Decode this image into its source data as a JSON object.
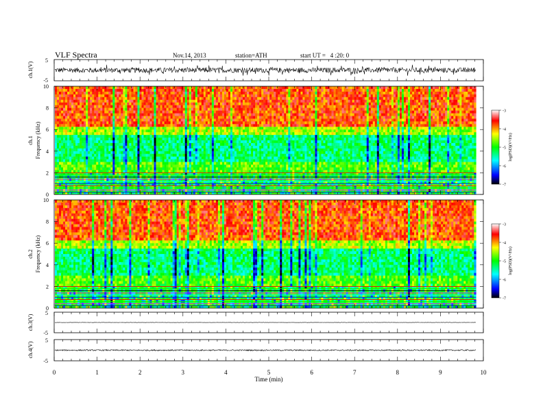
{
  "header": {
    "title": "VLF Spectra",
    "date": "Nov.14, 2013",
    "station": "station=ATH",
    "start": "start UT =   4 :20: 0"
  },
  "chart_data": [
    {
      "type": "line",
      "panel": "ch1-waveform",
      "ylabel": "ch.1(V)",
      "ylim": [
        -5,
        5
      ],
      "yticks": [
        "5",
        "-5"
      ],
      "xlim": [
        0,
        10
      ],
      "data_end": 9.83,
      "baseline": 0,
      "amplitude": 1.2
    },
    {
      "type": "heatmap",
      "panel": "ch1-spectrogram",
      "ylabel_channel": "ch.1",
      "ylabel": "Frequency (kHz)",
      "ylim": [
        0,
        10
      ],
      "yticks": [
        "0",
        "2",
        "4",
        "6",
        "8",
        "10"
      ],
      "xlim": [
        0,
        10
      ],
      "data_end": 9.83,
      "colorbar": {
        "label": "log(PSD)(V²/Hz)",
        "range": [
          -7,
          -3
        ],
        "ticks": [
          "-3",
          "-4",
          "-5",
          "-6",
          "-7"
        ],
        "stops": [
          "#000000",
          "#0000ff",
          "#00ffff",
          "#00ff00",
          "#ffff00",
          "#ff0000",
          "#ffffff"
        ]
      }
    },
    {
      "type": "heatmap",
      "panel": "ch2-spectrogram",
      "ylabel_channel": "ch.2",
      "ylabel": "Frequency (kHz)",
      "ylim": [
        0,
        10
      ],
      "yticks": [
        "0",
        "2",
        "4",
        "6",
        "8",
        "10"
      ],
      "xlim": [
        0,
        10
      ],
      "data_end": 9.83,
      "colorbar": {
        "label": "log(PSD)(V²/Hz)",
        "range": [
          -7,
          -3
        ],
        "ticks": [
          "-3",
          "-4",
          "-5",
          "-6",
          "-7"
        ],
        "stops": [
          "#000000",
          "#0000ff",
          "#00ffff",
          "#00ff00",
          "#ffff00",
          "#ff0000",
          "#ffffff"
        ]
      }
    },
    {
      "type": "line",
      "panel": "ch3-waveform",
      "ylabel": "ch.3(V)",
      "ylim": [
        -5,
        5
      ],
      "yticks": [
        "5",
        "-5"
      ],
      "xlim": [
        0,
        10
      ],
      "data_end": 9.83,
      "baseline": 0,
      "amplitude": 0.08
    },
    {
      "type": "line",
      "panel": "ch4-waveform",
      "ylabel": "ch.4(V)",
      "ylim": [
        -5,
        5
      ],
      "yticks": [
        "5",
        "-5"
      ],
      "xlim": [
        0,
        10
      ],
      "data_end": 9.83,
      "baseline": 0,
      "amplitude": 0.3
    }
  ],
  "xaxis": {
    "label": "Time (min)",
    "ticks": [
      "0",
      "1",
      "2",
      "3",
      "4",
      "5",
      "6",
      "7",
      "8",
      "9",
      "10"
    ]
  }
}
